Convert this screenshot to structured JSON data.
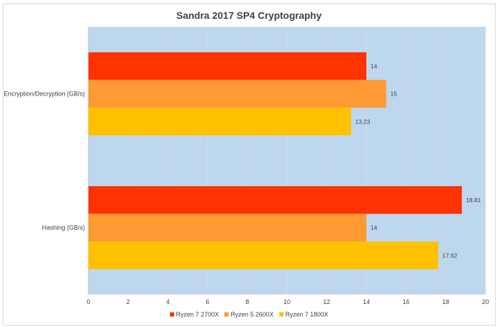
{
  "chart_data": {
    "type": "bar",
    "orientation": "horizontal",
    "title": "Sandra 2017 SP4 Cryptography",
    "categories": [
      "Encryption/Decryption (GB/s)",
      "Hashing (GB/s)"
    ],
    "series": [
      {
        "name": "Ryzen 7 2700X",
        "color": "#ff3300",
        "values": [
          14,
          18.81
        ]
      },
      {
        "name": "Ryzen 5 2600X",
        "color": "#ff9933",
        "values": [
          15,
          14
        ]
      },
      {
        "name": "Ryzen 7 1800X",
        "color": "#ffc000",
        "values": [
          13.23,
          17.62
        ]
      }
    ],
    "xlim": [
      0,
      20
    ],
    "xticks": [
      0,
      2,
      4,
      6,
      8,
      10,
      12,
      14,
      16,
      18,
      20
    ],
    "grid": true,
    "plot_background": "#bdd7ee",
    "legend": "bottom"
  }
}
